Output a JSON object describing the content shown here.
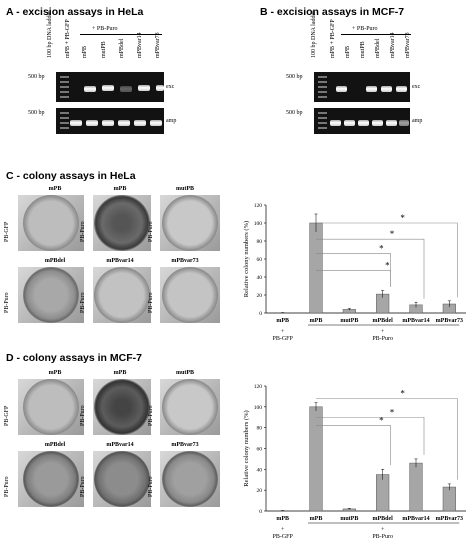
{
  "figure": {
    "sections": {
      "a": "A - excision assays in HeLa",
      "b": "B - excision assays in MCF-7",
      "c": "C - colony assays in HeLa",
      "d": "D - colony assays in MCF-7"
    },
    "gel_a": {
      "lanes": [
        "100 bp DNA ladder",
        "mPB + PB-GFP",
        "mPB",
        "mutPB",
        "mPBdel",
        "mPBvar14",
        "mPBvar73"
      ],
      "group_label": "+ PB-Puro",
      "markers": [
        "500 bp",
        "500 bp"
      ],
      "band_labels": [
        "exc",
        "amp"
      ]
    },
    "gel_b": {
      "lanes": [
        "100 bp DNA ladder",
        "mPB + PB-GFP",
        "mPB",
        "mutPB",
        "mPBdel",
        "mPBvar14",
        "mPBvar73"
      ],
      "group_label": "+ PB-Puro",
      "markers": [
        "500 bp",
        "500 bp"
      ],
      "band_labels": [
        "exc",
        "amp"
      ]
    },
    "plates_c": [
      {
        "title": "mPB",
        "side": "PB-GFP"
      },
      {
        "title": "mPB",
        "side": "PB-Puro"
      },
      {
        "title": "mutPB",
        "side": "PB-Puro"
      },
      {
        "title": "mPBdel",
        "side": "PB-Puro"
      },
      {
        "title": "mPBvar14",
        "side": "PB-Puro"
      },
      {
        "title": "mPBvar73",
        "side": "PB-Puro"
      }
    ],
    "plates_d": [
      {
        "title": "mPB",
        "side": "PB-GFP"
      },
      {
        "title": "mPB",
        "side": "PB-Puro"
      },
      {
        "title": "mutPB",
        "side": "PB-Puro"
      },
      {
        "title": "mPBdel",
        "side": "PB-Puro"
      },
      {
        "title": "mPBvar14",
        "side": "PB-Puro"
      },
      {
        "title": "mPBvar73",
        "side": "PB-Puro"
      }
    ]
  },
  "chart_data": [
    {
      "type": "bar",
      "categories": [
        "mPB",
        "mPB",
        "mutPB",
        "mPBdel",
        "mPBvar14",
        "mPBvar73"
      ],
      "values": [
        0,
        100,
        4,
        21,
        9,
        10
      ],
      "errors": [
        0.5,
        10,
        1,
        4,
        3,
        3.5
      ],
      "ylabel": "Relative colony numbers (%)",
      "ylim": [
        0,
        120
      ],
      "yticks": [
        "0",
        "20",
        "40",
        "60",
        "80",
        "100",
        "120"
      ],
      "group_labels": [
        "+",
        "PB-GFP",
        "+",
        "PB-Puro"
      ],
      "significance": [
        "*",
        "*",
        "*",
        "*"
      ],
      "grid": false
    },
    {
      "type": "bar",
      "categories": [
        "mPB",
        "mPB",
        "mutPB",
        "mPBdel",
        "mPBvar14",
        "mPBvar73"
      ],
      "values": [
        0,
        100,
        2,
        35,
        46,
        23
      ],
      "errors": [
        0.5,
        4,
        0.5,
        5,
        4,
        3
      ],
      "ylabel": "Relative colony numbers (%)",
      "ylim": [
        0,
        120
      ],
      "yticks": [
        "0",
        "20",
        "40",
        "60",
        "80",
        "100",
        "120"
      ],
      "group_labels": [
        "+",
        "PB-GFP",
        "+",
        "PB-Puro"
      ],
      "significance": [
        "*",
        "*",
        "*"
      ],
      "grid": false
    }
  ]
}
